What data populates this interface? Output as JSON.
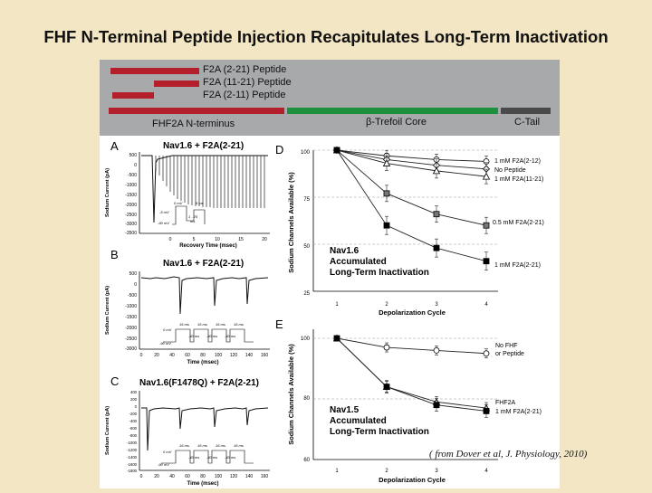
{
  "title": "FHF N-Terminal Peptide Injection Recapitulates Long-Term Inactivation",
  "banner": {
    "peptides": [
      "F2A (2-21) Peptide",
      "F2A (11-21) Peptide",
      "F2A (2-11) Peptide"
    ],
    "segments": [
      "FHF2A N-terminus",
      "β-Trefoil Core",
      "C-Tail"
    ],
    "colors": {
      "nterm": "#b3202b",
      "core": "#1e8f3a",
      "tail": "#4a4a4a"
    }
  },
  "panels": {
    "a": {
      "letter": "A",
      "title": "Nav1.6 + F2A(2-21)",
      "ylabel": "Sodium Current (pA)",
      "xlabel": "Recovery Time (msec)",
      "yticks": [
        "500",
        "0",
        "-500",
        "-1000",
        "-1500",
        "-2000",
        "-2500",
        "-3000",
        "-3500"
      ],
      "xticks": [
        "0",
        "5",
        "10",
        "15",
        "20"
      ],
      "protocol": [
        "0 mV",
        "6 ms",
        "-5 mV",
        "-90 mV",
        "1 - 25",
        "ms"
      ]
    },
    "b": {
      "letter": "B",
      "title": "Nav1.6 + F2A(2-21)",
      "ylabel": "Sodium Current (pA)",
      "xlabel": "Time (msec)",
      "yticks": [
        "500",
        "0",
        "-500",
        "-1000",
        "-1500",
        "-2000",
        "-2500",
        "-3000"
      ],
      "xticks": [
        "0",
        "20",
        "40",
        "60",
        "80",
        "100",
        "120",
        "140",
        "160"
      ],
      "protocol": [
        "16 ms",
        "16 ms",
        "16 ms",
        "16 ms",
        "0 mV",
        "-40 ms",
        "-40 ms",
        "-40 ms",
        "-90 mV"
      ]
    },
    "c": {
      "letter": "C",
      "title": "Nav1.6(F1478Q) + F2A(2-21)",
      "ylabel": "Sodium Current (pA)",
      "xlabel": "Time (msec)",
      "yticks": [
        "400",
        "200",
        "0",
        "-200",
        "-400",
        "-600",
        "-800",
        "-1000",
        "-1200",
        "-1400",
        "-1600",
        "-1800"
      ],
      "xticks": [
        "0",
        "20",
        "40",
        "60",
        "80",
        "100",
        "120",
        "140",
        "160"
      ],
      "protocol": [
        "16 ms",
        "16 ms",
        "16 ms",
        "16 ms",
        "0 mV",
        "-40 ms",
        "-40 ms",
        "-40 ms",
        "-90 mV"
      ]
    },
    "d": {
      "letter": "D",
      "ylabel": "Sodium Channels Available (%)",
      "xlabel": "Depolarization Cycle",
      "yticks": [
        "100",
        "75",
        "50",
        "25"
      ],
      "xticks": [
        "1",
        "2",
        "3",
        "4"
      ],
      "annotation": [
        "Nav1.6",
        "Accumulated",
        "Long-Term Inactivation"
      ],
      "legend": [
        "1 mM F2A(2-12)",
        "No Peptide",
        "1 mM F2A(11-21)",
        "0.5 mM F2A(2-21)",
        "1 mM F2A(2-21)"
      ]
    },
    "e": {
      "letter": "E",
      "ylabel": "Sodium Channels Available (%)",
      "xlabel": "Depolarization Cycle",
      "yticks": [
        "100",
        "80",
        "60"
      ],
      "xticks": [
        "1",
        "2",
        "3",
        "4"
      ],
      "annotation": [
        "Nav1.5",
        "Accumulated",
        "Long-Term Inactivation"
      ],
      "legend": [
        "No FHF",
        "or Peptide",
        "FHF2A",
        "1 mM F2A(2-21)"
      ]
    }
  },
  "chart_data": [
    {
      "type": "line",
      "panel": "D",
      "title": "Nav1.6 Accumulated Long-Term Inactivation",
      "xlabel": "Depolarization Cycle",
      "ylabel": "Sodium Channels Available (%)",
      "x": [
        1,
        2,
        3,
        4
      ],
      "ylim": [
        25,
        100
      ],
      "series": [
        {
          "name": "1 mM F2A(2-12)",
          "values": [
            100,
            97,
            95,
            94
          ]
        },
        {
          "name": "No Peptide",
          "values": [
            100,
            95,
            92,
            90
          ]
        },
        {
          "name": "1 mM F2A(11-21)",
          "values": [
            100,
            93,
            89,
            86
          ]
        },
        {
          "name": "0.5 mM F2A(2-21)",
          "values": [
            100,
            77,
            66,
            60
          ]
        },
        {
          "name": "1 mM F2A(2-21)",
          "values": [
            100,
            60,
            48,
            41
          ]
        }
      ]
    },
    {
      "type": "line",
      "panel": "E",
      "title": "Nav1.5 Accumulated Long-Term Inactivation",
      "xlabel": "Depolarization Cycle",
      "ylabel": "Sodium Channels Available (%)",
      "x": [
        1,
        2,
        3,
        4
      ],
      "ylim": [
        60,
        100
      ],
      "series": [
        {
          "name": "No FHF or Peptide",
          "values": [
            100,
            97,
            96,
            95
          ]
        },
        {
          "name": "FHF2A",
          "values": [
            100,
            84,
            79,
            77
          ]
        },
        {
          "name": "1 mM F2A(2-21)",
          "values": [
            100,
            84,
            78,
            76
          ]
        }
      ]
    }
  ],
  "citation": "( from Dover et al, J. Physiology, 2010)"
}
